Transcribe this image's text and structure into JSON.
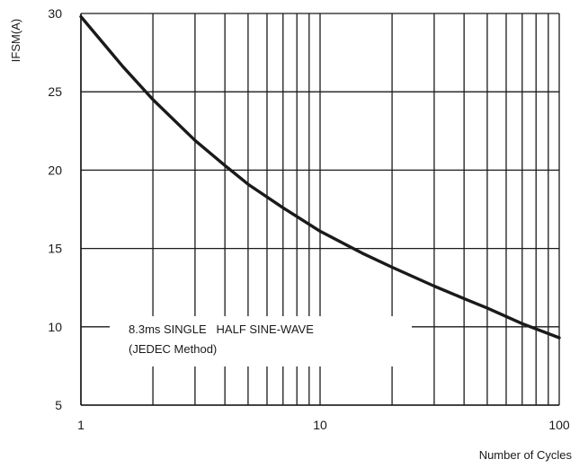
{
  "chart_data": {
    "type": "line",
    "title": "",
    "xlabel": "Number of Cycles",
    "ylabel": "IFSM(A)",
    "x_scale": "log",
    "xlim": [
      1,
      100
    ],
    "ylim": [
      5,
      30
    ],
    "x_ticks": [
      1,
      10,
      100
    ],
    "x_tick_labels": [
      "1",
      "10",
      "100"
    ],
    "y_ticks": [
      5,
      10,
      15,
      20,
      25,
      30
    ],
    "y_tick_labels": [
      "5",
      "10",
      "15",
      "20",
      "25",
      "30"
    ],
    "grid": true,
    "x_minor_grid": [
      2,
      3,
      4,
      5,
      6,
      7,
      8,
      9,
      20,
      30,
      40,
      50,
      60,
      70,
      80,
      90
    ],
    "annotation_lines": [
      "8.3ms SINGLE   HALF SINE-WAVE",
      "(JEDEC Method)"
    ],
    "series": [
      {
        "color": "#1a1a1a",
        "x": [
          1,
          1.5,
          2,
          3,
          4,
          5,
          7,
          10,
          15,
          20,
          30,
          40,
          50,
          70,
          100
        ],
        "y": [
          29.8,
          26.6,
          24.5,
          21.9,
          20.3,
          19.1,
          17.6,
          16.1,
          14.7,
          13.8,
          12.6,
          11.8,
          11.2,
          10.2,
          9.3
        ]
      }
    ]
  }
}
